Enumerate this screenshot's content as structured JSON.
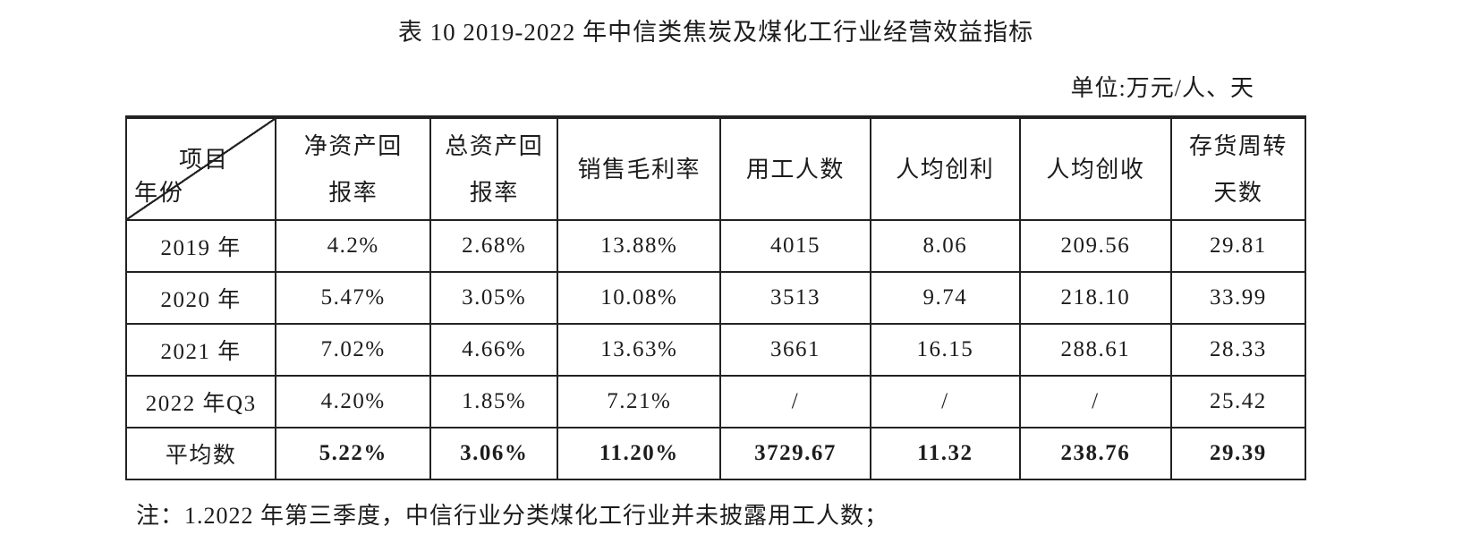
{
  "title": "表 10 2019-2022 年中信类焦炭及煤化工行业经营效益指标",
  "unit_label": "单位:万元/人、天",
  "footnote": "注：1.2022 年第三季度，中信行业分类煤化工行业并未披露用工人数；",
  "table": {
    "corner": {
      "top_right": "项目",
      "bottom_left": "年份"
    },
    "headers": [
      {
        "name": "净资产回报率",
        "lines": [
          "净资产回",
          "报率"
        ]
      },
      {
        "name": "总资产回报率",
        "lines": [
          "总资产回",
          "报率"
        ]
      },
      {
        "name": "销售毛利率",
        "lines": [
          "销售毛利率"
        ]
      },
      {
        "name": "用工人数",
        "lines": [
          "用工人数"
        ]
      },
      {
        "name": "人均创利",
        "lines": [
          "人均创利"
        ]
      },
      {
        "name": "人均创收",
        "lines": [
          "人均创收"
        ]
      },
      {
        "name": "存货周转天数",
        "lines": [
          "存货周转",
          "天数"
        ]
      }
    ],
    "rows": [
      {
        "label": "2019 年",
        "bold": false,
        "values": [
          "4.2%",
          "2.68%",
          "13.88%",
          "4015",
          "8.06",
          "209.56",
          "29.81"
        ]
      },
      {
        "label": "2020 年",
        "bold": false,
        "values": [
          "5.47%",
          "3.05%",
          "10.08%",
          "3513",
          "9.74",
          "218.10",
          "33.99"
        ]
      },
      {
        "label": "2021 年",
        "bold": false,
        "values": [
          "7.02%",
          "4.66%",
          "13.63%",
          "3661",
          "16.15",
          "288.61",
          "28.33"
        ]
      },
      {
        "label": "2022 年Q3",
        "bold": false,
        "values": [
          "4.20%",
          "1.85%",
          "7.21%",
          "/",
          "/",
          "/",
          "25.42"
        ]
      },
      {
        "label": "平均数",
        "bold": true,
        "values": [
          "5.22%",
          "3.06%",
          "11.20%",
          "3729.67",
          "11.32",
          "238.76",
          "29.39"
        ]
      }
    ]
  },
  "colors": {
    "text": "#1c1c1c",
    "border": "#222222",
    "background": "#ffffff"
  }
}
